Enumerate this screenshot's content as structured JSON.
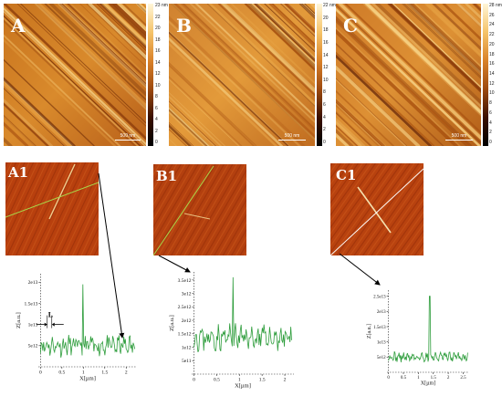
{
  "figure": {
    "panels_top": [
      {
        "label": "A",
        "scale_label": "500 nm",
        "unit": "nm",
        "colorbar_ticks": [
          "23 nm",
          "22",
          "20",
          "18",
          "16",
          "14",
          "12",
          "10",
          "8",
          "6",
          "4",
          "2",
          "0"
        ]
      },
      {
        "label": "B",
        "scale_label": "500 nm",
        "unit": "nm",
        "colorbar_ticks": [
          "22 nm",
          "20",
          "18",
          "16",
          "14",
          "12",
          "10",
          "8",
          "6",
          "4",
          "2",
          "0"
        ]
      },
      {
        "label": "C",
        "scale_label": "500 nm",
        "unit": "nm",
        "colorbar_ticks": [
          "28 nm",
          "26",
          "24",
          "22",
          "20",
          "18",
          "16",
          "14",
          "12",
          "10",
          "8",
          "6",
          "4",
          "2",
          "0"
        ]
      }
    ],
    "panels_fft": [
      {
        "label": "A1"
      },
      {
        "label": "B1"
      },
      {
        "label": "C1"
      }
    ],
    "annotation_L": "L",
    "colors": {
      "profile_line": "#2e9d3c",
      "fft_line_a": "#a8d84a",
      "fft_line_c": "#ffffff",
      "afm_dark": "#4a1a05",
      "afm_light": "#f3c063"
    }
  },
  "chart_data": [
    {
      "type": "line",
      "name": "A1 profile",
      "xlabel": "X[µm]",
      "ylabel": "Z[a.u.]",
      "xlim": [
        -0.05,
        2.25
      ],
      "ylim": [
        0,
        22000000000000.0
      ],
      "x_ticks": [
        "0",
        "0.5",
        "1",
        "1.5",
        "2"
      ],
      "y_ticks": [
        "5e12",
        "1e13",
        "1.5e13",
        "2e13"
      ],
      "peak": {
        "x": 0.99,
        "y": 19500000000000.0
      },
      "baseline": 5000000000000.0
    },
    {
      "type": "line",
      "name": "B1 profile",
      "xlabel": "X[µm]",
      "ylabel": "Z[a.u.]",
      "xlim": [
        -0.05,
        2.2
      ],
      "ylim": [
        0,
        3800000000000.0
      ],
      "x_ticks": [
        "0",
        "0.5",
        "1",
        "1.5",
        "2"
      ],
      "y_ticks": [
        "5e11",
        "1e12",
        "1.5e12",
        "2e12",
        "2.5e12",
        "3e12",
        "3.5e12"
      ],
      "peak": {
        "x": 0.86,
        "y": 3600000000000.0
      },
      "baseline": 1350000000000.0
    },
    {
      "type": "line",
      "name": "C1 profile",
      "xlabel": "X[µm]",
      "ylabel": "Z[a.u.]",
      "xlim": [
        -0.05,
        2.7
      ],
      "ylim": [
        0,
        27000000000000.0
      ],
      "x_ticks": [
        "0",
        "0.5",
        "1",
        "1.5",
        "2",
        "2.5"
      ],
      "y_ticks": [
        "5e12",
        "1e13",
        "1.5e13",
        "2e13",
        "2.5e13"
      ],
      "peak": {
        "x": 1.38,
        "y": 25000000000000.0
      },
      "baseline": 5000000000000.0
    }
  ]
}
